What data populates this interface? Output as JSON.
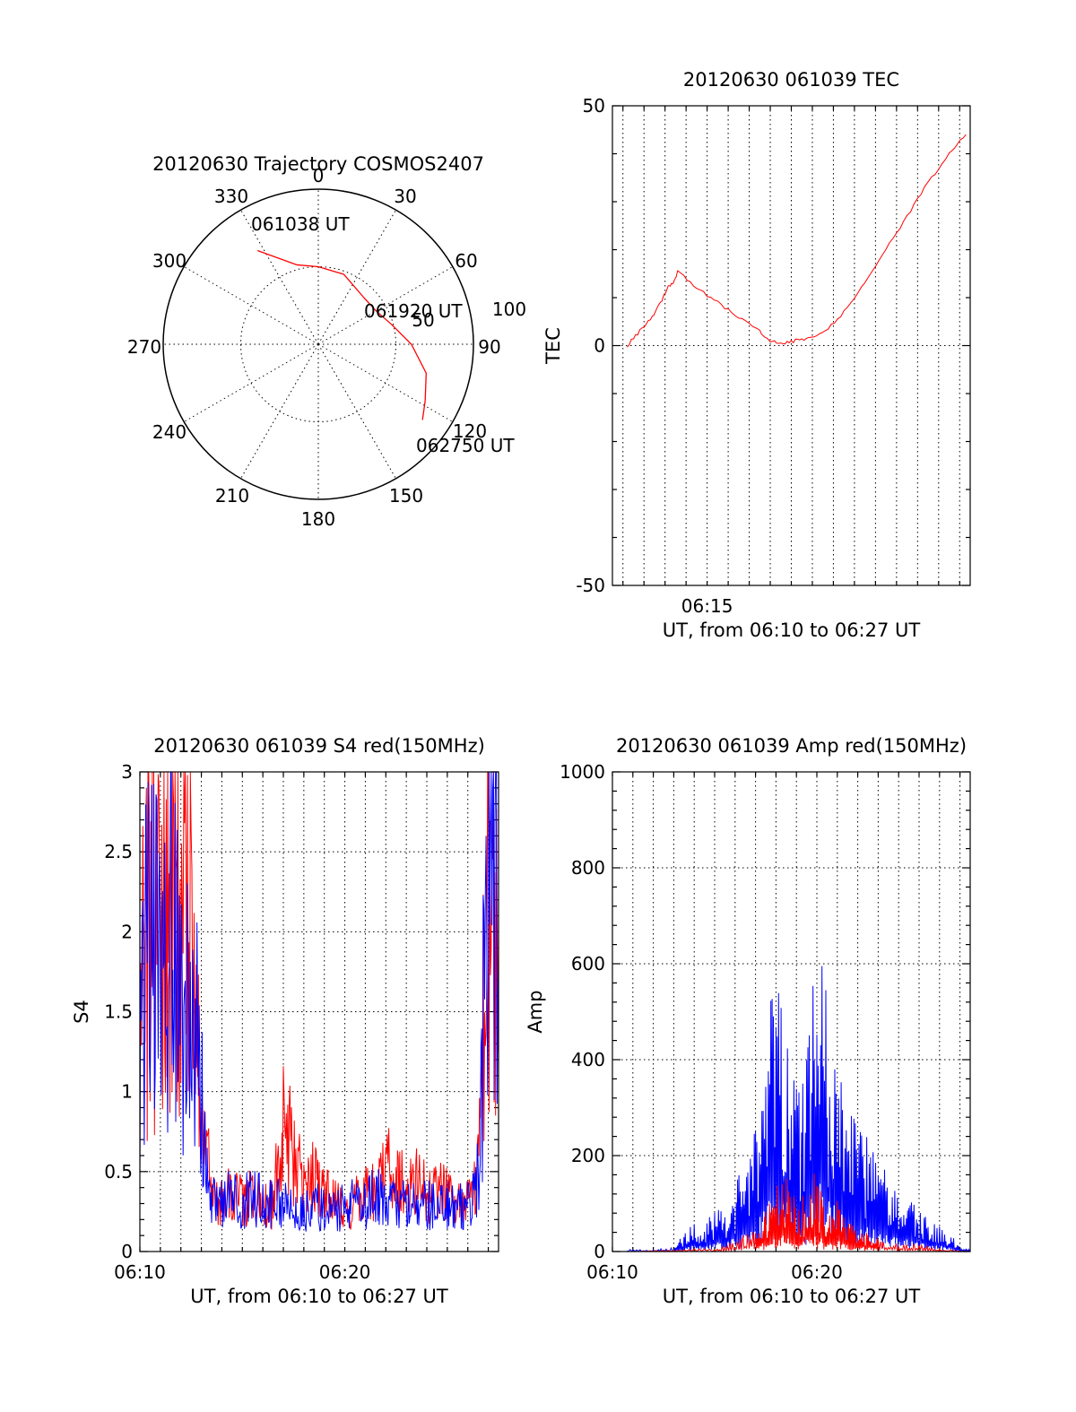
{
  "chart_data": [
    {
      "type": "polar",
      "title": "20120630 Trajectory COSMOS2407",
      "angle_labels": [
        "0",
        "30",
        "60",
        "90",
        "120",
        "150",
        "180",
        "210",
        "240",
        "270",
        "300",
        "330"
      ],
      "radius_labels": [
        "50",
        "100"
      ],
      "annotations": [
        "061038 UT",
        "061920 UT",
        "062750 UT"
      ],
      "series": [
        {
          "color": "#ff0000",
          "points": [
            {
              "az": 327,
              "r": 72
            },
            {
              "az": 345,
              "r": 53
            },
            {
              "az": 0,
              "r": 50
            },
            {
              "az": 20,
              "r": 48
            },
            {
              "az": 45,
              "r": 42
            },
            {
              "az": 60,
              "r": 43
            },
            {
              "az": 75,
              "r": 49
            },
            {
              "az": 90,
              "r": 60
            },
            {
              "az": 105,
              "r": 72
            },
            {
              "az": 118,
              "r": 78
            },
            {
              "az": 126,
              "r": 83
            }
          ]
        }
      ]
    },
    {
      "type": "line",
      "title": "20120630 061039 TEC",
      "xlabel": "UT, from 06:10 to 06:27 UT",
      "ylabel": "TEC",
      "xlim": [
        10.5,
        27.5
      ],
      "ylim": [
        -50,
        50
      ],
      "yticks": [
        "50",
        "0",
        "-50"
      ],
      "xticks": [
        {
          "x": 15,
          "label": "06:15"
        }
      ],
      "series": [
        {
          "color": "#ff0000",
          "x": [
            11.2,
            11.8,
            12.4,
            12.8,
            13.1,
            13.4,
            13.6,
            14.5,
            15.5,
            16.5,
            17.5,
            18,
            18.6,
            19.2,
            19.8,
            20.6,
            21.5,
            22.5,
            23.5,
            24.5,
            25.5,
            26.5,
            27.3
          ],
          "y": [
            0,
            3,
            6,
            9,
            12,
            13,
            15.5,
            12,
            9,
            6,
            3,
            1,
            0.5,
            1,
            1.5,
            3,
            7,
            13,
            20,
            27,
            34,
            40,
            44
          ]
        }
      ]
    },
    {
      "type": "line",
      "title": "20120630 061039 S4 red(150MHz)",
      "xlabel": "UT, from 06:10 to 06:27 UT",
      "ylabel": "S4",
      "xlim": [
        10,
        27.5
      ],
      "ylim": [
        0,
        3
      ],
      "yticks": [
        "0",
        "0.5",
        "1",
        "1.5",
        "2",
        "2.5",
        "3"
      ],
      "xticks": [
        {
          "x": 10,
          "label": "06:10"
        },
        {
          "x": 20,
          "label": "06:20"
        }
      ],
      "series": [
        {
          "name": "",
          "color": "#ff0000",
          "x": [
            10,
            10.5,
            11,
            11.5,
            12,
            12.5,
            13,
            13.5,
            14,
            14.5,
            15,
            15.5,
            16,
            16.5,
            17,
            17.5,
            18,
            18.5,
            19,
            19.5,
            20,
            20.5,
            21,
            21.5,
            22,
            22.5,
            23,
            23.5,
            24,
            24.5,
            25,
            25.5,
            26,
            26.5,
            27,
            27.5
          ],
          "y": [
            1.8,
            2.4,
            2.2,
            2.6,
            2.3,
            2.0,
            1.2,
            0.3,
            0.35,
            0.4,
            0.3,
            0.35,
            0.28,
            0.3,
            0.8,
            0.6,
            0.4,
            0.45,
            0.35,
            0.3,
            0.25,
            0.3,
            0.35,
            0.4,
            0.55,
            0.45,
            0.4,
            0.45,
            0.35,
            0.4,
            0.35,
            0.3,
            0.3,
            0.5,
            2.5,
            2.2
          ]
        },
        {
          "name": "",
          "color": "#0000ff",
          "x": [
            10,
            10.5,
            11,
            11.5,
            12,
            12.5,
            13,
            13.5,
            14,
            14.5,
            15,
            15.5,
            16,
            16.5,
            17,
            17.5,
            18,
            18.5,
            19,
            19.5,
            20,
            20.5,
            21,
            21.5,
            22,
            22.5,
            23,
            23.5,
            24,
            24.5,
            25,
            25.5,
            26,
            26.5,
            27,
            27.5
          ],
          "y": [
            1.5,
            1.8,
            1.6,
            1.9,
            1.7,
            1.5,
            1.0,
            0.3,
            0.3,
            0.35,
            0.3,
            0.35,
            0.3,
            0.3,
            0.3,
            0.25,
            0.25,
            0.3,
            0.25,
            0.25,
            0.28,
            0.3,
            0.3,
            0.35,
            0.3,
            0.28,
            0.3,
            0.28,
            0.3,
            0.28,
            0.3,
            0.28,
            0.3,
            0.45,
            2.2,
            1.8
          ]
        }
      ]
    },
    {
      "type": "line",
      "title": "20120630 061039 Amp red(150MHz)",
      "xlabel": "UT, from 06:10 to 06:27 UT",
      "ylabel": "Amp",
      "xlim": [
        10,
        27.5
      ],
      "ylim": [
        0,
        1000
      ],
      "yticks": [
        "0",
        "200",
        "400",
        "600",
        "800",
        "1000"
      ],
      "xticks": [
        {
          "x": 10,
          "label": "06:10"
        },
        {
          "x": 20,
          "label": "06:20"
        }
      ],
      "series": [
        {
          "name": "",
          "color": "#0000ff",
          "x": [
            10.7,
            12,
            13,
            13.5,
            14,
            14.5,
            15,
            15.5,
            16,
            16.5,
            17,
            17.5,
            18,
            18.5,
            19,
            19.5,
            20,
            20.5,
            21,
            21.5,
            22,
            22.5,
            23,
            23.5,
            24,
            24.5,
            25,
            25.5,
            26,
            26.5,
            27,
            27.5
          ],
          "y": [
            3,
            3,
            5,
            25,
            40,
            30,
            60,
            50,
            90,
            120,
            180,
            280,
            400,
            330,
            220,
            260,
            460,
            330,
            260,
            220,
            160,
            150,
            120,
            100,
            90,
            70,
            55,
            40,
            35,
            25,
            5,
            3
          ]
        },
        {
          "name": "",
          "color": "#ff0000",
          "x": [
            10.7,
            13,
            15,
            16,
            17,
            17.5,
            18,
            18.5,
            19,
            19.5,
            20,
            20.5,
            21,
            21.5,
            22,
            22.5,
            23,
            24,
            25,
            26,
            27.5
          ],
          "y": [
            0,
            2,
            5,
            15,
            35,
            60,
            90,
            110,
            60,
            80,
            110,
            40,
            70,
            40,
            30,
            25,
            20,
            15,
            10,
            5,
            0
          ]
        }
      ]
    }
  ]
}
